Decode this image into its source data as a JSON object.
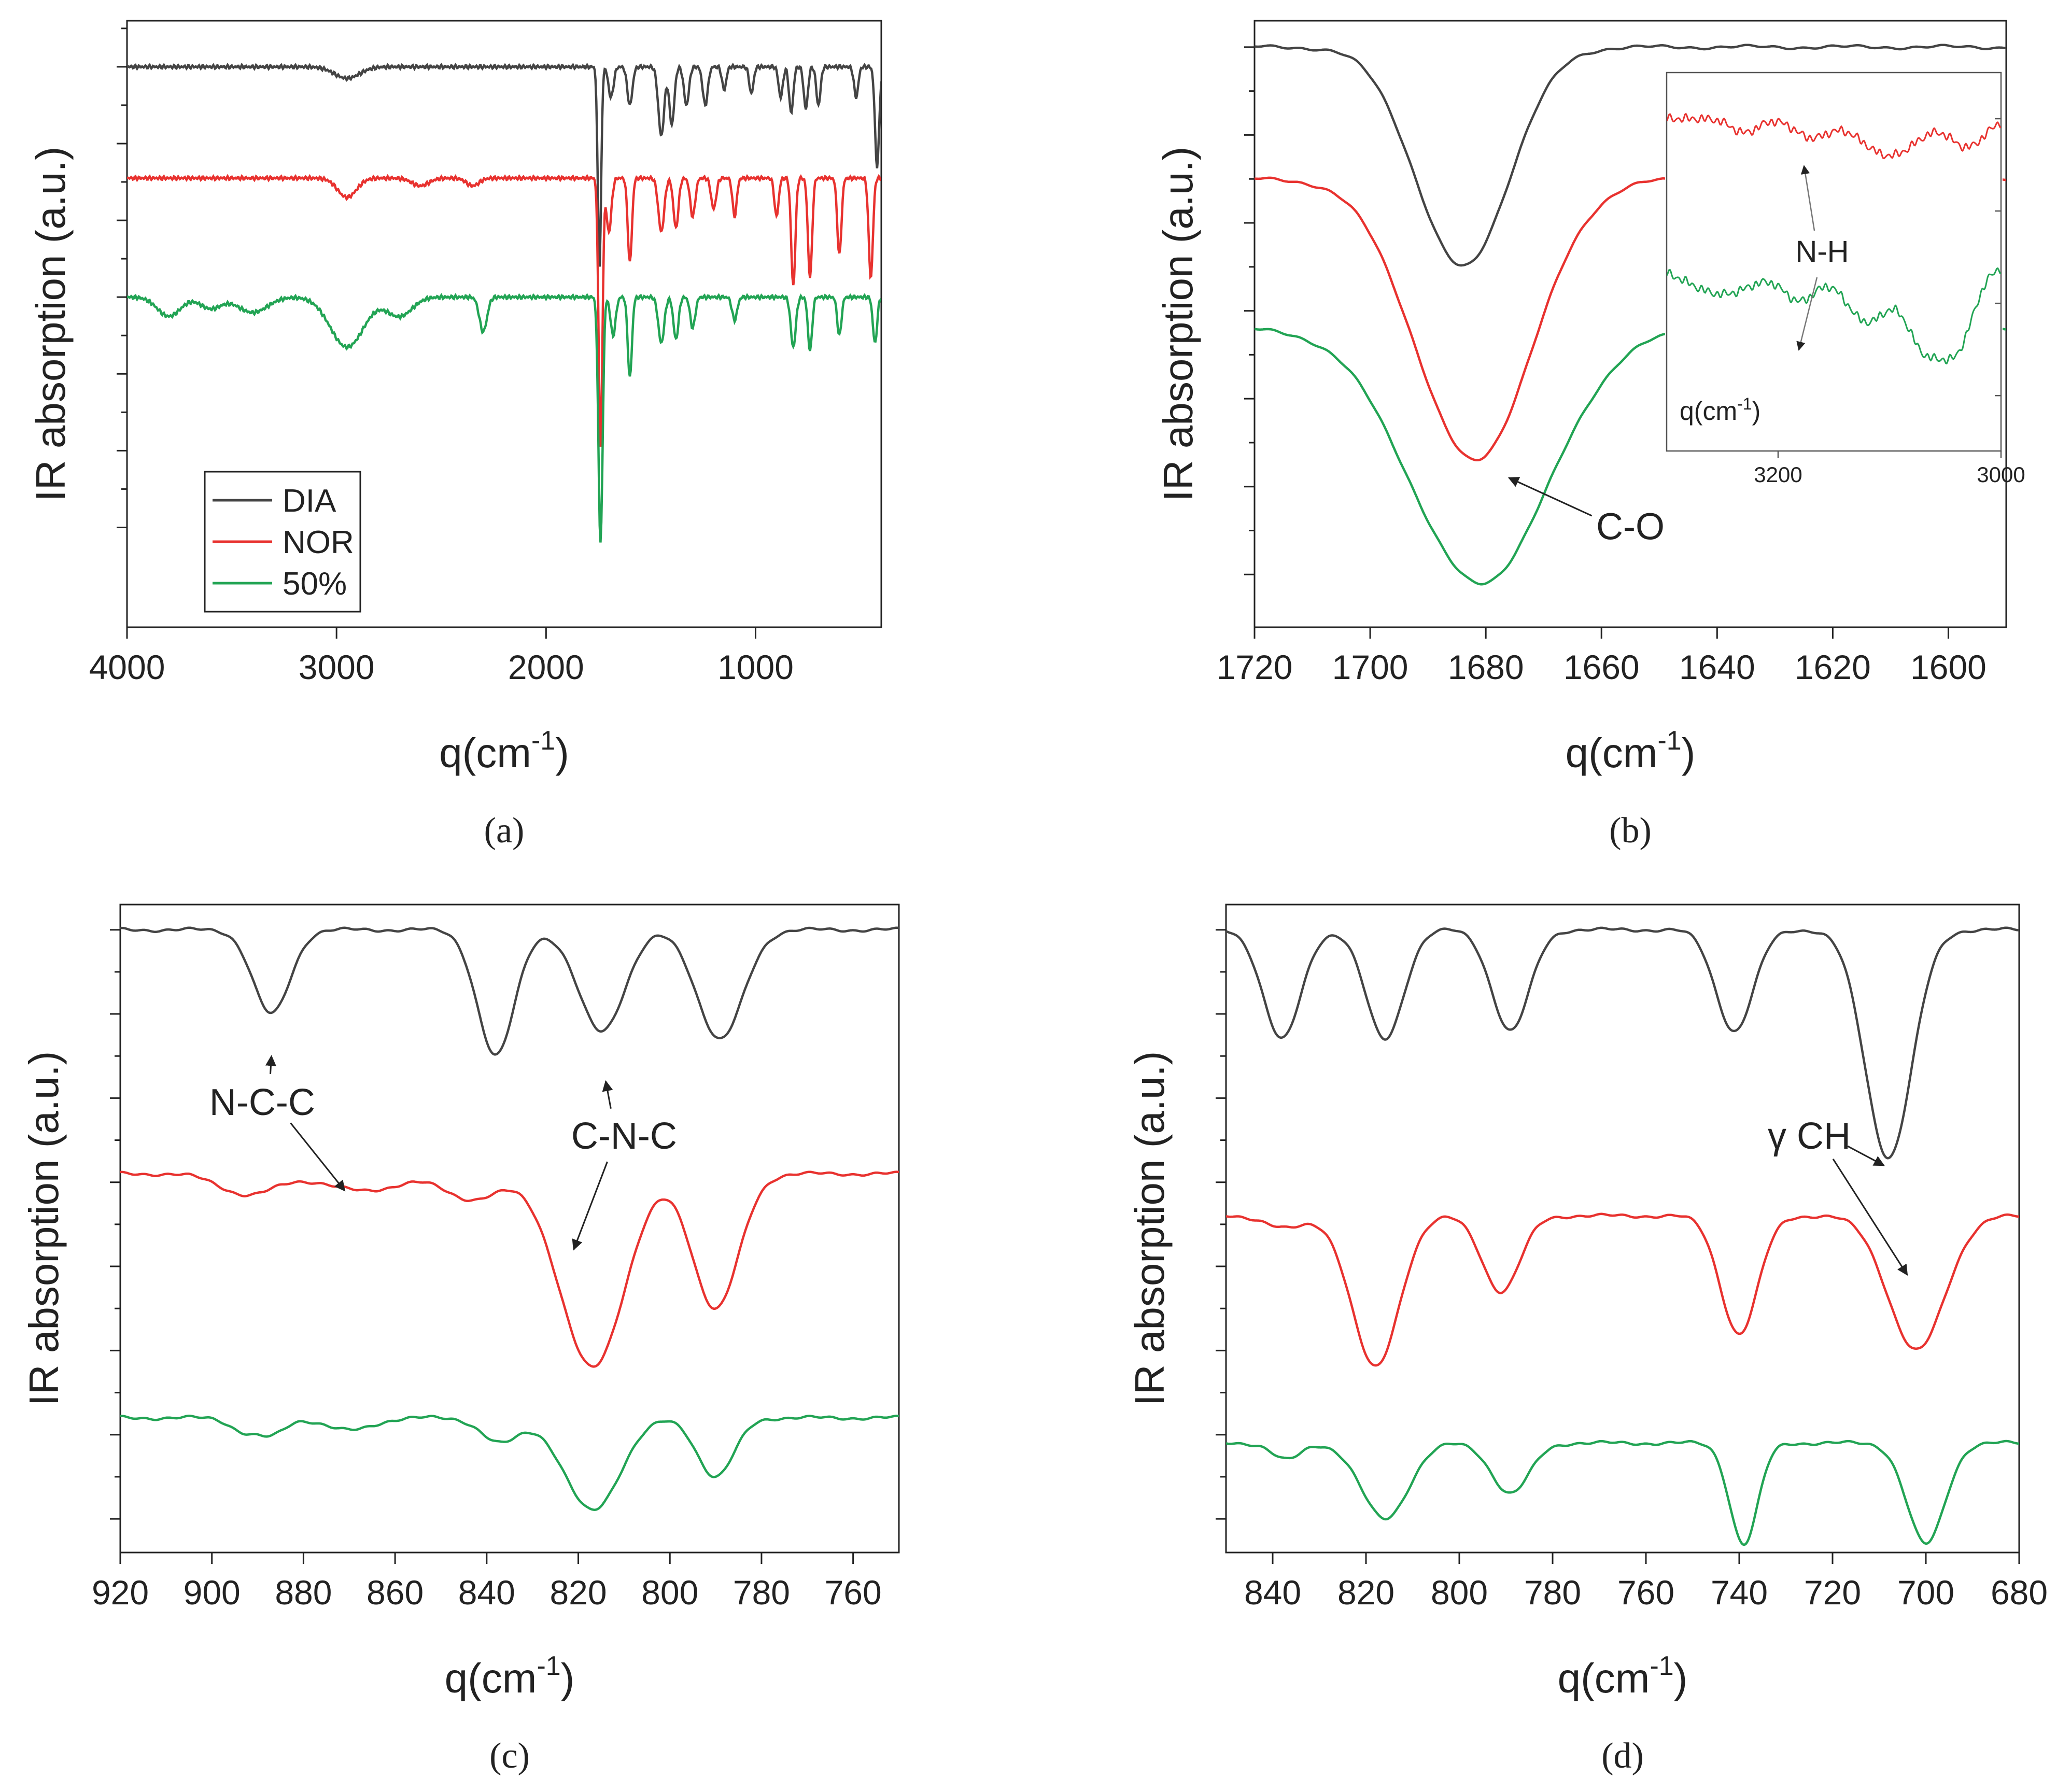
{
  "figure": {
    "colors": {
      "DIA": "#444444",
      "NOR": "#e8322f",
      "50%": "#22a454",
      "axis": "#222222",
      "arrow": "#222222"
    }
  },
  "chart_data": [
    {
      "id": "a",
      "type": "line",
      "caption": "(a)",
      "xlabel": "q(cm",
      "xlabel_sup": "-1",
      "xlabel_tail": ")",
      "ylabel": "IR absorption (a.u.)",
      "xlim": [
        4000,
        400
      ],
      "ylim": [
        -7.3,
        0.6
      ],
      "x_ticks": [
        4000,
        3000,
        2000,
        1000
      ],
      "x_tick_labels": [
        "4000",
        "3000",
        "2000",
        "1000"
      ],
      "y_ticks": [
        -6,
        -5,
        -4,
        -3,
        -2,
        -1,
        0
      ],
      "legend": {
        "placement": "bottom-left",
        "entries": [
          "DIA",
          "NOR",
          "50%"
        ]
      },
      "annotations": [],
      "series": [
        {
          "name": "DIA",
          "offset": 0,
          "baseline": 0,
          "peaks": [
            [
              2950,
              0.15,
              60
            ],
            [
              1745,
              2.6,
              8
            ],
            [
              1690,
              0.4,
              12
            ],
            [
              1600,
              0.5,
              12
            ],
            [
              1450,
              0.9,
              14
            ],
            [
              1400,
              0.75,
              12
            ],
            [
              1330,
              0.5,
              12
            ],
            [
              1240,
              0.5,
              12
            ],
            [
              1150,
              0.3,
              10
            ],
            [
              1020,
              0.35,
              10
            ],
            [
              880,
              0.4,
              10
            ],
            [
              830,
              0.6,
              10
            ],
            [
              760,
              0.55,
              10
            ],
            [
              700,
              0.5,
              10
            ],
            [
              520,
              0.4,
              10
            ],
            [
              420,
              1.3,
              10
            ]
          ]
        },
        {
          "name": "NOR",
          "offset": -1.45,
          "baseline": 0,
          "peaks": [
            [
              2950,
              0.25,
              45
            ],
            [
              2600,
              0.1,
              40
            ],
            [
              2350,
              0.1,
              30
            ],
            [
              1740,
              3.5,
              9
            ],
            [
              1700,
              0.7,
              12
            ],
            [
              1600,
              1.1,
              10
            ],
            [
              1450,
              0.7,
              14
            ],
            [
              1380,
              0.65,
              12
            ],
            [
              1300,
              0.5,
              12
            ],
            [
              1200,
              0.4,
              12
            ],
            [
              1100,
              0.5,
              10
            ],
            [
              900,
              0.5,
              10
            ],
            [
              820,
              1.4,
              10
            ],
            [
              740,
              1.3,
              10
            ],
            [
              600,
              1.0,
              10
            ],
            [
              450,
              1.3,
              10
            ]
          ]
        },
        {
          "name": "50%",
          "offset": -3.0,
          "baseline": 0,
          "peaks": [
            [
              3800,
              0.25,
              55
            ],
            [
              3600,
              0.15,
              50
            ],
            [
              3400,
              0.2,
              70
            ],
            [
              2950,
              0.65,
              80
            ],
            [
              2700,
              0.25,
              60
            ],
            [
              2300,
              0.45,
              18
            ],
            [
              1740,
              3.2,
              10
            ],
            [
              1680,
              0.5,
              12
            ],
            [
              1600,
              1.05,
              10
            ],
            [
              1450,
              0.6,
              14
            ],
            [
              1380,
              0.55,
              12
            ],
            [
              1300,
              0.4,
              12
            ],
            [
              1100,
              0.3,
              12
            ],
            [
              820,
              0.65,
              12
            ],
            [
              740,
              0.7,
              10
            ],
            [
              600,
              0.5,
              10
            ],
            [
              430,
              0.6,
              10
            ]
          ]
        }
      ]
    },
    {
      "id": "b",
      "type": "line",
      "caption": "(b)",
      "xlabel": "q(cm",
      "xlabel_sup": "-1",
      "xlabel_tail": ")",
      "ylabel": "IR absorption (a.u.)",
      "xlim": [
        1720,
        1590
      ],
      "ylim": [
        -6.6,
        0.3
      ],
      "x_ticks": [
        1720,
        1700,
        1680,
        1660,
        1640,
        1620,
        1600
      ],
      "x_tick_labels": [
        "1720",
        "1700",
        "1680",
        "1660",
        "1640",
        "1620",
        "1600"
      ],
      "y_ticks": [
        -6,
        -5,
        -4,
        -3,
        -2,
        -1,
        0
      ],
      "annotations": [
        {
          "id": "co",
          "text": "C-O",
          "at_x": 1655,
          "at_y": -5.6,
          "arrow_to": [
            1676,
            -4.9
          ]
        }
      ],
      "series": [
        {
          "name": "DIA",
          "offset": 0,
          "baseline": 0,
          "peaks": [
            [
              1684,
              2.5,
              8
            ]
          ]
        },
        {
          "name": "NOR",
          "offset": -1.5,
          "baseline": 0,
          "peaks": [
            [
              1682,
              3.2,
              10
            ]
          ]
        },
        {
          "name": "50%",
          "offset": -3.2,
          "baseline": 0,
          "peaks": [
            [
              1681,
              2.9,
              12
            ]
          ]
        }
      ],
      "inset": {
        "xlim": [
          3300,
          3000
        ],
        "ylim": [
          -3.6,
          0.5
        ],
        "x_ticks": [
          3200,
          3000
        ],
        "x_tick_labels": [
          "3200",
          "3000"
        ],
        "xlabel": "q(cm",
        "xlabel_sup": "-1",
        "xlabel_tail": ")",
        "label": "N-H",
        "series": [
          {
            "name": "NOR",
            "offset": 0,
            "baseline": 0,
            "peaks": [
              [
                3230,
                0.15,
                12
              ],
              [
                3170,
                0.2,
                15
              ],
              [
                3100,
                0.4,
                25
              ],
              [
                3030,
                0.3,
                15
              ]
            ]
          },
          {
            "name": "50%",
            "offset": -1.6,
            "baseline": 0,
            "peaks": [
              [
                3250,
                0.3,
                30
              ],
              [
                3180,
                0.35,
                15
              ],
              [
                3120,
                0.6,
                20
              ],
              [
                3070,
                0.8,
                15
              ],
              [
                3040,
                0.85,
                15
              ]
            ]
          }
        ]
      }
    },
    {
      "id": "c",
      "type": "line",
      "caption": "(c)",
      "xlabel": "q(cm",
      "xlabel_sup": "-1",
      "xlabel_tail": ")",
      "ylabel": "IR absorption (a.u.)",
      "xlim": [
        920,
        750
      ],
      "ylim": [
        -7.4,
        0.3
      ],
      "x_ticks": [
        920,
        900,
        880,
        860,
        840,
        820,
        800,
        780,
        760
      ],
      "x_tick_labels": [
        "920",
        "900",
        "880",
        "860",
        "840",
        "820",
        "800",
        "780",
        "760"
      ],
      "y_ticks": [
        -7,
        -6,
        -5,
        -4,
        -3,
        -2,
        -1,
        0
      ],
      "annotations": [
        {
          "id": "ncc",
          "text": "N-C-C",
          "at_x": 889,
          "at_y": -2.2,
          "arrows_to": [
            [
              887,
              -1.5
            ],
            [
              871,
              -3.1
            ]
          ]
        },
        {
          "id": "cnc",
          "text": "C-N-C",
          "at_x": 810,
          "at_y": -2.6,
          "arrows_to": [
            [
              814,
              -1.8
            ],
            [
              821,
              -3.8
            ]
          ]
        }
      ],
      "series": [
        {
          "name": "DIA",
          "offset": 0,
          "baseline": 0,
          "peaks": [
            [
              887,
              1.0,
              4
            ],
            [
              838,
              1.5,
              4
            ],
            [
              815,
              1.2,
              5
            ],
            [
              789,
              1.3,
              5
            ]
          ]
        },
        {
          "name": "NOR",
          "offset": -2.9,
          "baseline": 0,
          "peaks": [
            [
              892,
              0.25,
              6
            ],
            [
              867,
              0.2,
              8
            ],
            [
              843,
              0.3,
              6
            ],
            [
              817,
              2.3,
              7
            ],
            [
              790,
              1.6,
              5
            ]
          ]
        },
        {
          "name": "50%",
          "offset": -5.8,
          "baseline": 0,
          "peaks": [
            [
              893,
              0.15,
              3
            ],
            [
              887,
              0.2,
              3
            ],
            [
              870,
              0.15,
              5
            ],
            [
              837,
              0.3,
              4
            ],
            [
              817,
              1.1,
              6
            ],
            [
              790,
              0.7,
              4
            ]
          ]
        }
      ]
    },
    {
      "id": "d",
      "type": "line",
      "caption": "(d)",
      "xlabel": "q(cm",
      "xlabel_sup": "-1",
      "xlabel_tail": ")",
      "ylabel": "IR absorption (a.u.)",
      "xlim": [
        850,
        680
      ],
      "ylim": [
        -7.4,
        0.3
      ],
      "x_ticks": [
        840,
        820,
        800,
        780,
        760,
        740,
        720,
        700,
        680
      ],
      "x_tick_labels": [
        "840",
        "820",
        "800",
        "780",
        "760",
        "740",
        "720",
        "700",
        "680"
      ],
      "y_ticks": [
        -7,
        -6,
        -5,
        -4,
        -3,
        -2,
        -1,
        0
      ],
      "annotations": [
        {
          "id": "gch",
          "text": "γ CH",
          "at_x": 725,
          "at_y": -2.6,
          "arrows_to": [
            [
              709,
              -2.8
            ],
            [
              704,
              -4.1
            ]
          ]
        }
      ],
      "series": [
        {
          "name": "DIA",
          "offset": 0,
          "baseline": 0,
          "peaks": [
            [
              838,
              1.3,
              4
            ],
            [
              816,
              1.3,
              4
            ],
            [
              789,
              1.2,
              4
            ],
            [
              741,
              1.2,
              4
            ],
            [
              708,
              2.7,
              5
            ]
          ]
        },
        {
          "name": "NOR",
          "offset": -3.4,
          "baseline": 0,
          "peaks": [
            [
              837,
              0.15,
              4
            ],
            [
              818,
              1.8,
              5
            ],
            [
              791,
              0.9,
              4
            ],
            [
              740,
              1.4,
              4
            ],
            [
              702,
              1.6,
              6
            ]
          ]
        },
        {
          "name": "50%",
          "offset": -6.1,
          "baseline": 0,
          "peaks": [
            [
              837,
              0.2,
              3
            ],
            [
              816,
              0.9,
              5
            ],
            [
              789,
              0.6,
              4
            ],
            [
              739,
              1.2,
              3
            ],
            [
              700,
              1.2,
              4
            ]
          ]
        }
      ]
    }
  ]
}
